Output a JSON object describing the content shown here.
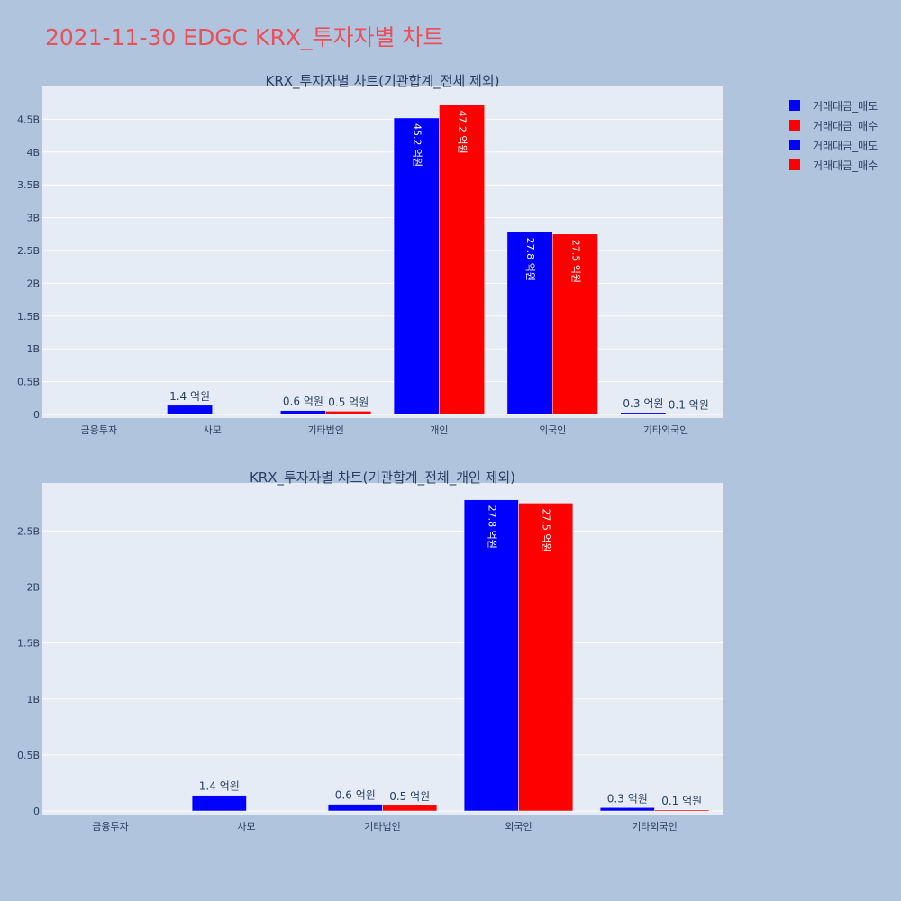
{
  "title": "2021-11-30 EDGC KRX_투자자별 차트",
  "colors": {
    "sell": "#0000ff",
    "buy": "#ff0000",
    "plot_bg": "#e5ecf6",
    "page_bg": "#b0c4de",
    "title": "#e8505b"
  },
  "legend": [
    {
      "label": "거래대금_매도",
      "color": "#0000ff"
    },
    {
      "label": "거래대금_매수",
      "color": "#ff0000"
    },
    {
      "label": "거래대금_매도",
      "color": "#0000ff"
    },
    {
      "label": "거래대금_매수",
      "color": "#ff0000"
    }
  ],
  "chart_data": [
    {
      "type": "bar",
      "title": "KRX_투자자별 차트(기관합계_전체 제외)",
      "categories": [
        "금융투자",
        "사모",
        "기타법인",
        "개인",
        "외국인",
        "기타외국인"
      ],
      "ylim": [
        0,
        5.0
      ],
      "yticks": [
        0,
        0.5,
        1,
        1.5,
        2,
        2.5,
        3,
        3.5,
        4,
        4.5
      ],
      "ytick_labels": [
        "0",
        "0.5B",
        "1B",
        "1.5B",
        "2B",
        "2.5B",
        "3B",
        "3.5B",
        "4B",
        "4.5B"
      ],
      "series": [
        {
          "name": "거래대금_매도",
          "color": "#0000ff",
          "values": [
            0,
            0.14,
            0.06,
            4.52,
            2.78,
            0.03
          ],
          "labels": [
            "",
            "1.4 억원",
            "0.6 억원",
            "45.2 억원",
            "27.8 억원",
            "0.3 억원"
          ]
        },
        {
          "name": "거래대금_매수",
          "color": "#ff0000",
          "values": [
            0,
            0,
            0.05,
            4.72,
            2.75,
            0.01
          ],
          "labels": [
            "",
            "",
            "0.5 억원",
            "47.2 억원",
            "27.5 억원",
            "0.1 억원"
          ]
        }
      ]
    },
    {
      "type": "bar",
      "title": "KRX_투자자별 차트(기관합계_전체_개인 제외)",
      "categories": [
        "금융투자",
        "사모",
        "기타법인",
        "외국인",
        "기타외국인"
      ],
      "ylim": [
        0,
        2.93
      ],
      "yticks": [
        0,
        0.5,
        1,
        1.5,
        2,
        2.5
      ],
      "ytick_labels": [
        "0",
        "0.5B",
        "1B",
        "1.5B",
        "2B",
        "2.5B"
      ],
      "series": [
        {
          "name": "거래대금_매도",
          "color": "#0000ff",
          "values": [
            0,
            0.14,
            0.06,
            2.78,
            0.03
          ],
          "labels": [
            "",
            "1.4 억원",
            "0.6 억원",
            "27.8 억원",
            "0.3 억원"
          ]
        },
        {
          "name": "거래대금_매수",
          "color": "#ff0000",
          "values": [
            0,
            0,
            0.05,
            2.75,
            0.01
          ],
          "labels": [
            "",
            "",
            "0.5 억원",
            "27.5 억원",
            "0.1 억원"
          ]
        }
      ]
    }
  ]
}
